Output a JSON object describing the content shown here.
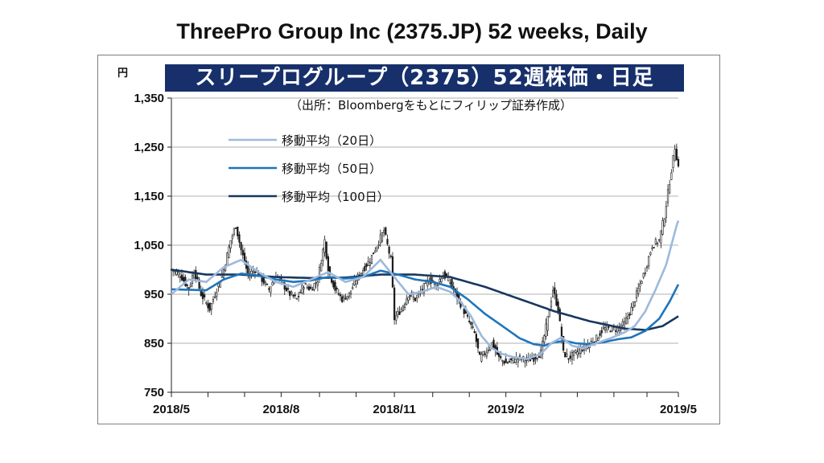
{
  "slide_title": "ThreePro Group Inc (2375.JP) 52 weeks, Daily",
  "chart_data": {
    "type": "candlestick",
    "title": "スリープログループ（2375）52週株価・日足",
    "source_note": "（出所：Bloombergをもとにフィリップ証券作成）",
    "y_unit": "円",
    "ylim": [
      750,
      1350
    ],
    "yticks": [
      750,
      850,
      950,
      1050,
      1150,
      1250,
      1350
    ],
    "ytick_labels": [
      "750",
      "850",
      "950",
      "1,050",
      "1,150",
      "1,250",
      "1,350"
    ],
    "xtick_labels": [
      "2018/5",
      "2018/8",
      "2018/11",
      "2019/2",
      "2019/5"
    ],
    "legend": [
      {
        "name": "移動平均（20日）",
        "color": "#9db9dc"
      },
      {
        "name": "移動平均（50日）",
        "color": "#1f75bb"
      },
      {
        "name": "移動平均（100日）",
        "color": "#17375e"
      }
    ],
    "close_path": [
      [
        0,
        1000
      ],
      [
        5,
        990
      ],
      [
        10,
        960
      ],
      [
        13,
        1000
      ],
      [
        17,
        950
      ],
      [
        22,
        920
      ],
      [
        26,
        960
      ],
      [
        30,
        1000
      ],
      [
        34,
        1060
      ],
      [
        37,
        1090
      ],
      [
        40,
        1040
      ],
      [
        44,
        990
      ],
      [
        48,
        1000
      ],
      [
        52,
        980
      ],
      [
        56,
        960
      ],
      [
        60,
        990
      ],
      [
        64,
        970
      ],
      [
        68,
        950
      ],
      [
        72,
        940
      ],
      [
        76,
        970
      ],
      [
        80,
        960
      ],
      [
        84,
        980
      ],
      [
        88,
        1060
      ],
      [
        90,
        1000
      ],
      [
        94,
        960
      ],
      [
        98,
        940
      ],
      [
        102,
        950
      ],
      [
        106,
        980
      ],
      [
        110,
        1000
      ],
      [
        114,
        1020
      ],
      [
        118,
        1050
      ],
      [
        122,
        1080
      ],
      [
        126,
        1020
      ],
      [
        128,
        900
      ],
      [
        132,
        920
      ],
      [
        136,
        950
      ],
      [
        140,
        940
      ],
      [
        144,
        960
      ],
      [
        148,
        980
      ],
      [
        152,
        970
      ],
      [
        156,
        990
      ],
      [
        160,
        975
      ],
      [
        163,
        950
      ],
      [
        166,
        930
      ],
      [
        170,
        900
      ],
      [
        174,
        870
      ],
      [
        177,
        820
      ],
      [
        180,
        830
      ],
      [
        184,
        850
      ],
      [
        188,
        820
      ],
      [
        192,
        810
      ],
      [
        196,
        815
      ],
      [
        200,
        820
      ],
      [
        204,
        815
      ],
      [
        208,
        820
      ],
      [
        212,
        830
      ],
      [
        216,
        900
      ],
      [
        219,
        960
      ],
      [
        222,
        920
      ],
      [
        225,
        830
      ],
      [
        228,
        820
      ],
      [
        232,
        830
      ],
      [
        236,
        840
      ],
      [
        240,
        850
      ],
      [
        244,
        860
      ],
      [
        248,
        880
      ],
      [
        252,
        880
      ],
      [
        256,
        880
      ],
      [
        260,
        890
      ],
      [
        264,
        920
      ],
      [
        268,
        960
      ],
      [
        272,
        1000
      ],
      [
        276,
        1050
      ],
      [
        280,
        1060
      ],
      [
        283,
        1110
      ],
      [
        286,
        1180
      ],
      [
        289,
        1250
      ],
      [
        291,
        1210
      ]
    ],
    "sma20": [
      [
        0,
        950
      ],
      [
        10,
        980
      ],
      [
        20,
        975
      ],
      [
        30,
        1005
      ],
      [
        40,
        1020
      ],
      [
        50,
        995
      ],
      [
        60,
        975
      ],
      [
        70,
        965
      ],
      [
        80,
        980
      ],
      [
        90,
        995
      ],
      [
        100,
        975
      ],
      [
        110,
        985
      ],
      [
        120,
        1020
      ],
      [
        128,
        985
      ],
      [
        136,
        950
      ],
      [
        144,
        955
      ],
      [
        152,
        965
      ],
      [
        160,
        955
      ],
      [
        166,
        935
      ],
      [
        172,
        905
      ],
      [
        178,
        865
      ],
      [
        184,
        840
      ],
      [
        190,
        828
      ],
      [
        196,
        822
      ],
      [
        204,
        818
      ],
      [
        212,
        828
      ],
      [
        218,
        850
      ],
      [
        224,
        862
      ],
      [
        230,
        845
      ],
      [
        236,
        840
      ],
      [
        244,
        850
      ],
      [
        252,
        860
      ],
      [
        260,
        872
      ],
      [
        266,
        885
      ],
      [
        272,
        915
      ],
      [
        278,
        960
      ],
      [
        284,
        1010
      ],
      [
        290,
        1090
      ],
      [
        291,
        1100
      ]
    ],
    "sma50": [
      [
        0,
        960
      ],
      [
        20,
        958
      ],
      [
        30,
        980
      ],
      [
        40,
        992
      ],
      [
        50,
        988
      ],
      [
        60,
        980
      ],
      [
        70,
        975
      ],
      [
        80,
        978
      ],
      [
        90,
        985
      ],
      [
        100,
        982
      ],
      [
        110,
        985
      ],
      [
        120,
        998
      ],
      [
        130,
        990
      ],
      [
        140,
        980
      ],
      [
        150,
        975
      ],
      [
        160,
        965
      ],
      [
        170,
        940
      ],
      [
        180,
        910
      ],
      [
        190,
        885
      ],
      [
        200,
        860
      ],
      [
        208,
        848
      ],
      [
        214,
        845
      ],
      [
        220,
        852
      ],
      [
        226,
        855
      ],
      [
        232,
        850
      ],
      [
        240,
        848
      ],
      [
        248,
        852
      ],
      [
        256,
        858
      ],
      [
        264,
        862
      ],
      [
        272,
        875
      ],
      [
        280,
        900
      ],
      [
        286,
        935
      ],
      [
        291,
        970
      ]
    ],
    "sma100": [
      [
        0,
        1000
      ],
      [
        20,
        990
      ],
      [
        40,
        990
      ],
      [
        60,
        985
      ],
      [
        80,
        983
      ],
      [
        100,
        984
      ],
      [
        120,
        990
      ],
      [
        140,
        990
      ],
      [
        160,
        985
      ],
      [
        180,
        965
      ],
      [
        200,
        940
      ],
      [
        220,
        915
      ],
      [
        240,
        895
      ],
      [
        260,
        880
      ],
      [
        272,
        877
      ],
      [
        282,
        885
      ],
      [
        291,
        905
      ]
    ]
  }
}
